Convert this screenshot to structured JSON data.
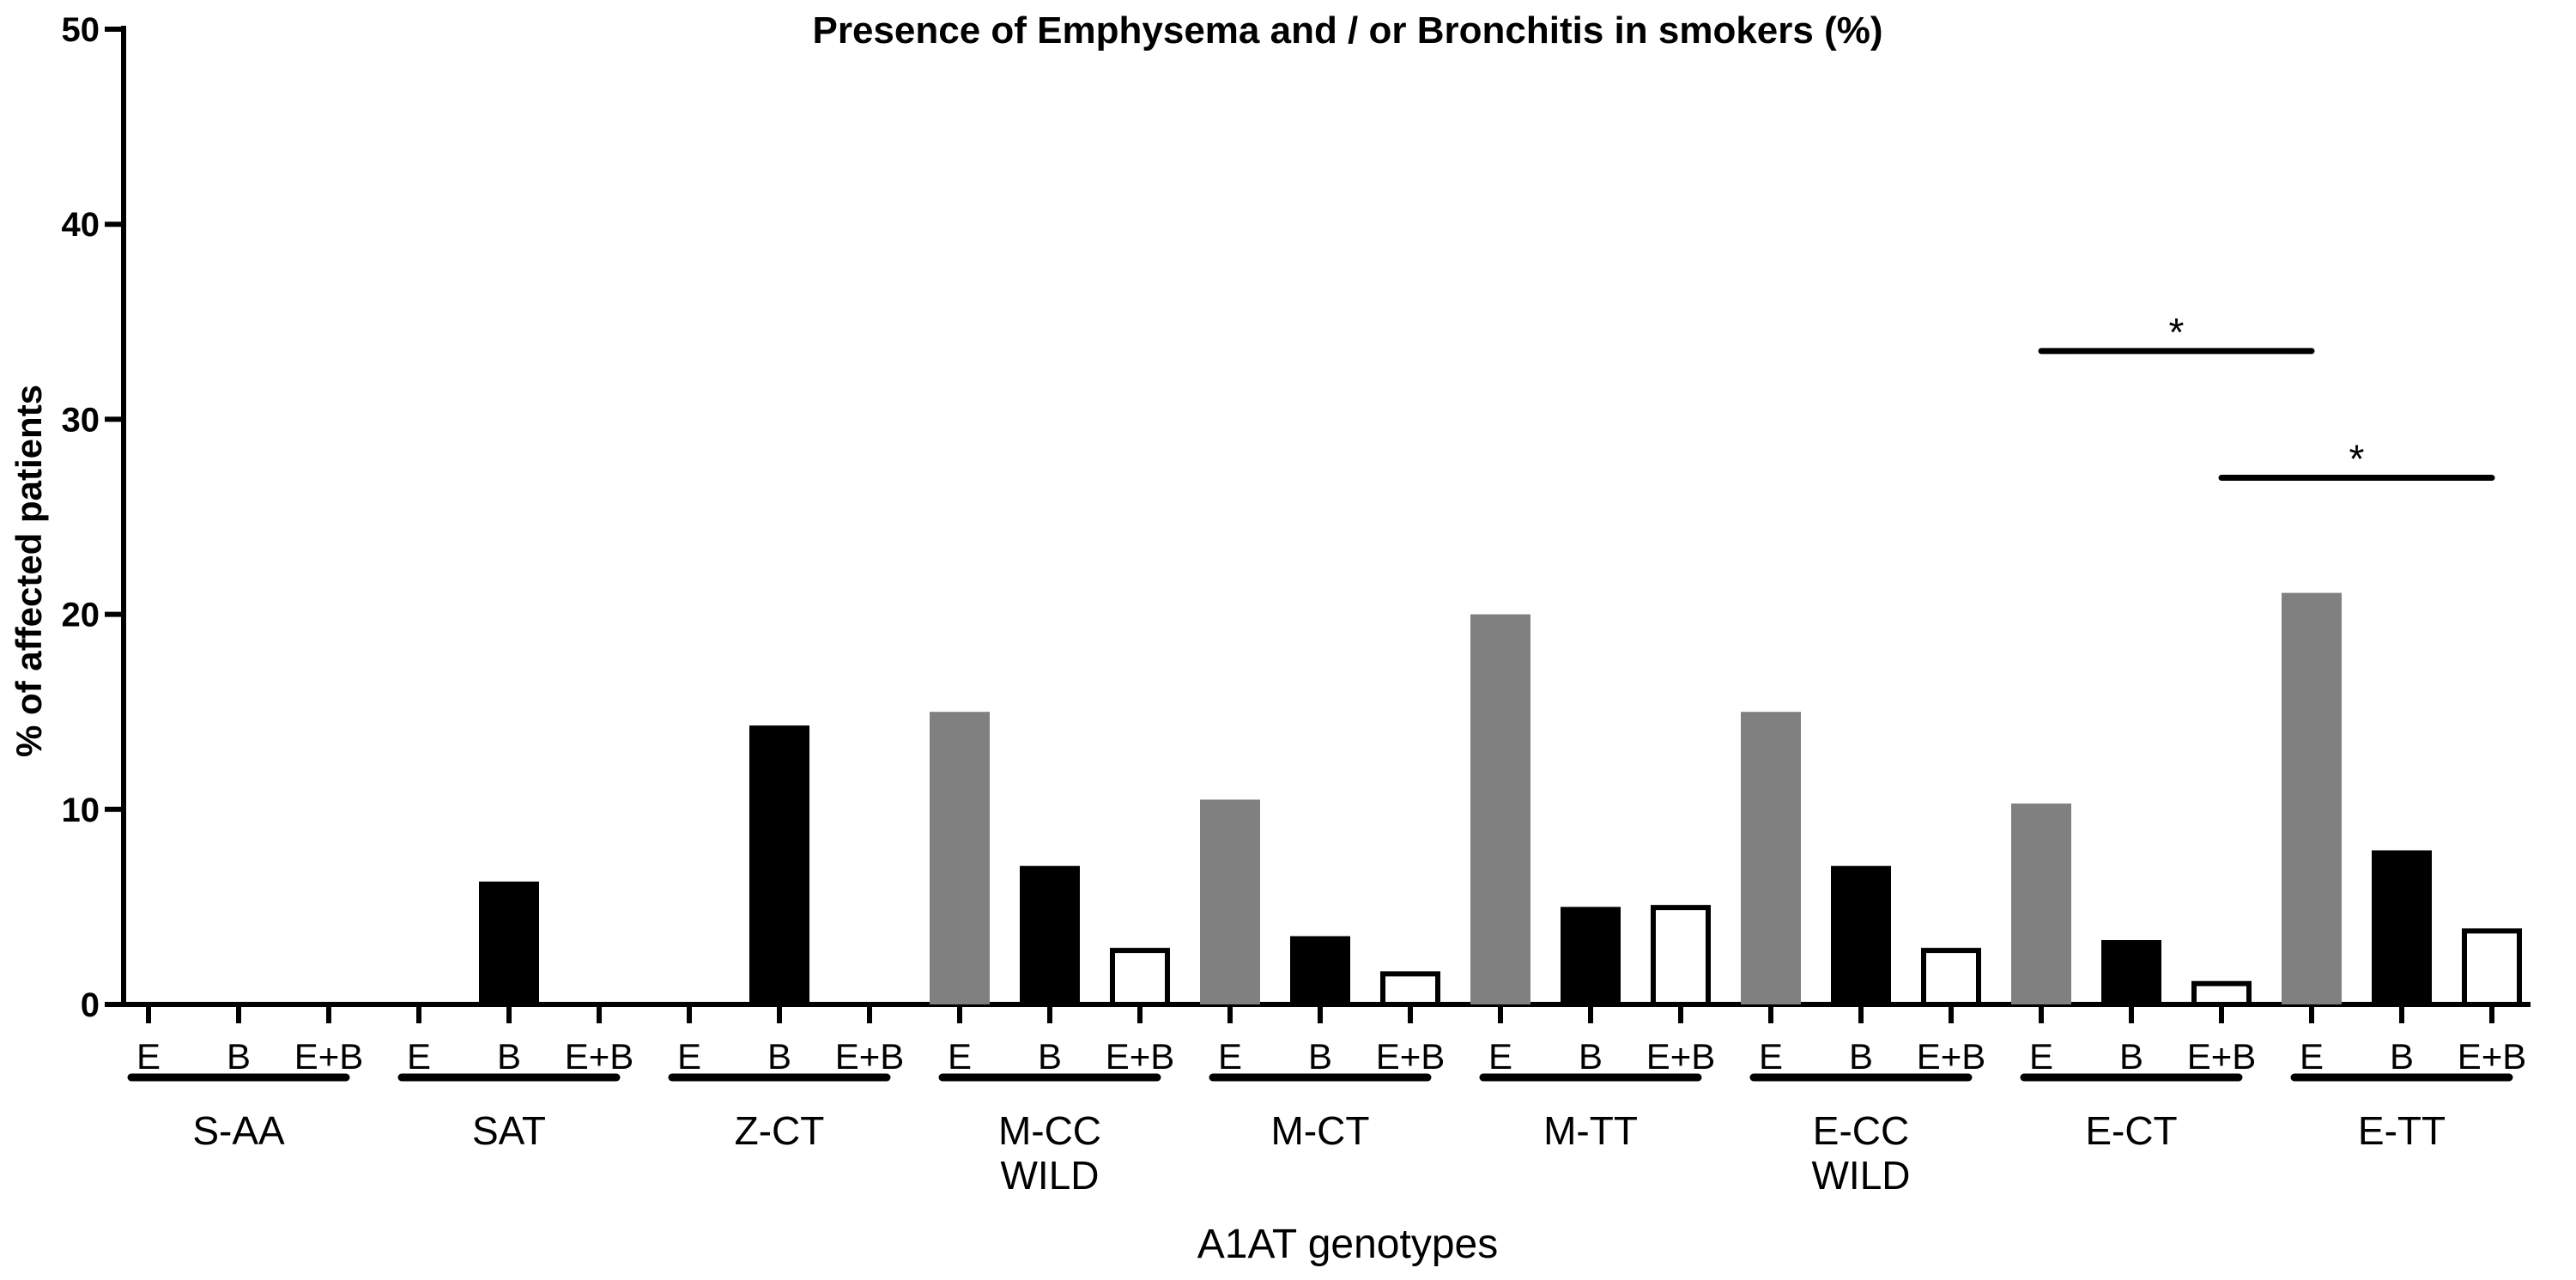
{
  "chart_data": {
    "type": "bar",
    "title": "Presence of Emphysema and / or Bronchitis in smokers  (%)",
    "ylabel": "% of affected patients",
    "xlabel": "A1AT genotypes",
    "ylim": [
      0,
      50
    ],
    "yticks": [
      "0",
      "10",
      "20",
      "30",
      "40",
      "50"
    ],
    "grid": false,
    "legend": "none",
    "colors": {
      "E": "#808080",
      "B": "#000000",
      "E+B": "#ffffff",
      "axis": "#000000"
    },
    "subcategories": [
      "E",
      "B",
      "E+B"
    ],
    "groups": [
      {
        "label": [
          "S-AA"
        ],
        "values": [
          0,
          0,
          0
        ]
      },
      {
        "label": [
          "SAT"
        ],
        "values": [
          0,
          6.3,
          0
        ]
      },
      {
        "label": [
          "Z-CT"
        ],
        "values": [
          0,
          14.3,
          0
        ]
      },
      {
        "label": [
          "M-CC",
          "WILD"
        ],
        "values": [
          15.0,
          7.1,
          2.9
        ]
      },
      {
        "label": [
          "M-CT"
        ],
        "values": [
          10.5,
          3.5,
          1.7
        ]
      },
      {
        "label": [
          "M-TT"
        ],
        "values": [
          20.0,
          5.0,
          5.1
        ]
      },
      {
        "label": [
          "E-CC",
          "WILD"
        ],
        "values": [
          15.0,
          7.1,
          2.9
        ]
      },
      {
        "label": [
          "E-CT"
        ],
        "values": [
          10.3,
          3.3,
          1.2
        ]
      },
      {
        "label": [
          "E-TT"
        ],
        "values": [
          21.1,
          7.9,
          3.9
        ]
      }
    ],
    "annotations": [
      {
        "text": "*",
        "from": {
          "group": 7,
          "sub": 0
        },
        "to": {
          "group": 8,
          "sub": 0
        },
        "y": 33.5
      },
      {
        "text": "*",
        "from": {
          "group": 7,
          "sub": 2
        },
        "to": {
          "group": 8,
          "sub": 2
        },
        "y": 27.0
      }
    ]
  }
}
